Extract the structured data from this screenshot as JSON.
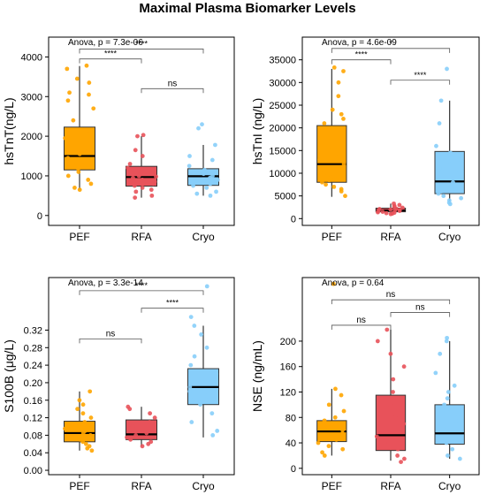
{
  "figure": {
    "title": "Maximal Plasma Biomarker Levels"
  },
  "colors": {
    "PEF": "#FFA500",
    "RFA": "#E8525A",
    "Cryo": "#87CEFA",
    "median": "#000000",
    "box_stroke": "#333333"
  },
  "chart_data": [
    {
      "type": "box",
      "ylabel": "hsTnT(ng/L)",
      "categories": [
        "PEF",
        "RFA",
        "Cryo"
      ],
      "ylim": [
        -250,
        4500
      ],
      "yticks": [
        0,
        1000,
        2000,
        3000,
        4000
      ],
      "ytick_labels": [
        "0",
        "1000",
        "2000",
        "3000",
        "4000"
      ],
      "stats_text": "Anova, p = 7.3e-06",
      "boxes": [
        {
          "group": "PEF",
          "whisker_low": 650,
          "q1": 1150,
          "median": 1500,
          "q3": 2230,
          "whisker_high": 3770
        },
        {
          "group": "RFA",
          "whisker_low": 450,
          "q1": 740,
          "median": 970,
          "q3": 1240,
          "whisker_high": 2000
        },
        {
          "group": "Cryo",
          "whisker_low": 500,
          "q1": 760,
          "median": 990,
          "q3": 1180,
          "whisker_high": 1780
        }
      ],
      "points": [
        {
          "group": "PEF",
          "y": [
            3780,
            3700,
            3450,
            3350,
            3100,
            3050,
            2900,
            2700,
            2400,
            2150,
            1950,
            1800,
            1650,
            1550,
            1450,
            1350,
            1250,
            1180,
            1100,
            1000,
            900,
            800,
            700,
            650
          ]
        },
        {
          "group": "RFA",
          "y": [
            2030,
            2000,
            1650,
            1500,
            1300,
            1200,
            1100,
            1050,
            1000,
            980,
            950,
            900,
            850,
            800,
            750,
            700,
            650,
            600,
            500,
            450
          ]
        },
        {
          "group": "Cryo",
          "y": [
            2300,
            2200,
            1780,
            1500,
            1400,
            1250,
            1150,
            1100,
            1050,
            1000,
            950,
            900,
            850,
            800,
            750,
            700,
            600,
            550,
            500
          ]
        }
      ],
      "comparisons": [
        {
          "from": "PEF",
          "to": "RFA",
          "y": 3950,
          "label": "****"
        },
        {
          "from": "PEF",
          "to": "Cryo",
          "y": 4200,
          "label": "****"
        },
        {
          "from": "RFA",
          "to": "Cryo",
          "y": 3200,
          "label": "ns"
        }
      ]
    },
    {
      "type": "box",
      "ylabel": "hsTnI (ng/L)",
      "categories": [
        "PEF",
        "RFA",
        "Cryo"
      ],
      "ylim": [
        -1500,
        40000
      ],
      "yticks": [
        0,
        5000,
        10000,
        15000,
        20000,
        25000,
        30000,
        35000
      ],
      "ytick_labels": [
        "0",
        "5000",
        "10000",
        "15000",
        "20000",
        "25000",
        "30000",
        "35000"
      ],
      "stats_text": "Anova, p = 4.6e-09",
      "boxes": [
        {
          "group": "PEF",
          "whisker_low": 4800,
          "q1": 8000,
          "median": 12000,
          "q3": 20500,
          "whisker_high": 33000
        },
        {
          "group": "RFA",
          "whisker_low": 1000,
          "q1": 1500,
          "median": 1800,
          "q3": 2300,
          "whisker_high": 3300
        },
        {
          "group": "Cryo",
          "whisker_low": 3200,
          "q1": 5500,
          "median": 8200,
          "q3": 14800,
          "whisker_high": 26000
        }
      ],
      "points": [
        {
          "group": "PEF",
          "y": [
            33300,
            32500,
            30000,
            27000,
            24000,
            23000,
            22000,
            21000,
            19000,
            17000,
            15500,
            14000,
            13000,
            12000,
            11000,
            10000,
            9000,
            8500,
            8000,
            7500,
            7000,
            6500,
            6000,
            5000
          ]
        },
        {
          "group": "RFA",
          "y": [
            3300,
            3000,
            2800,
            2600,
            2400,
            2200,
            2100,
            2000,
            1900,
            1800,
            1700,
            1600,
            1500,
            1400,
            1300,
            1200,
            1100,
            1000
          ]
        },
        {
          "group": "Cryo",
          "y": [
            33000,
            26000,
            21000,
            16000,
            14500,
            13000,
            12000,
            11000,
            10000,
            9000,
            8000,
            7000,
            6000,
            5500,
            5000,
            4500,
            4000,
            3500,
            3200
          ]
        }
      ],
      "comparisons": [
        {
          "from": "PEF",
          "to": "RFA",
          "y": 35000,
          "label": "****"
        },
        {
          "from": "PEF",
          "to": "Cryo",
          "y": 37500,
          "label": "*"
        },
        {
          "from": "RFA",
          "to": "Cryo",
          "y": 30500,
          "label": "****"
        }
      ]
    },
    {
      "type": "box",
      "ylabel": "S100B (μg/L)",
      "categories": [
        "PEF",
        "RFA",
        "Cryo"
      ],
      "ylim": [
        -0.01,
        0.44
      ],
      "yticks": [
        0.0,
        0.04,
        0.08,
        0.12,
        0.16,
        0.2,
        0.24,
        0.28,
        0.32
      ],
      "ytick_labels": [
        "0.00",
        "0.04",
        "0.08",
        "0.12",
        "0.16",
        "0.20",
        "0.24",
        "0.28",
        "0.32"
      ],
      "stats_text": "Anova, p = 3.3e-14",
      "boxes": [
        {
          "group": "PEF",
          "whisker_low": 0.045,
          "q1": 0.065,
          "median": 0.085,
          "q3": 0.112,
          "whisker_high": 0.18
        },
        {
          "group": "RFA",
          "whisker_low": 0.055,
          "q1": 0.07,
          "median": 0.082,
          "q3": 0.115,
          "whisker_high": 0.145
        },
        {
          "group": "Cryo",
          "whisker_low": 0.075,
          "q1": 0.15,
          "median": 0.19,
          "q3": 0.232,
          "whisker_high": 0.33
        }
      ],
      "points": [
        {
          "group": "PEF",
          "y": [
            0.18,
            0.16,
            0.15,
            0.14,
            0.13,
            0.12,
            0.11,
            0.1,
            0.095,
            0.09,
            0.085,
            0.08,
            0.075,
            0.07,
            0.065,
            0.06,
            0.055,
            0.05,
            0.045
          ]
        },
        {
          "group": "RFA",
          "y": [
            0.145,
            0.14,
            0.13,
            0.12,
            0.11,
            0.1,
            0.095,
            0.09,
            0.085,
            0.08,
            0.075,
            0.07,
            0.065,
            0.06,
            0.055
          ]
        },
        {
          "group": "Cryo",
          "y": [
            0.42,
            0.35,
            0.33,
            0.31,
            0.28,
            0.26,
            0.24,
            0.22,
            0.21,
            0.2,
            0.19,
            0.18,
            0.17,
            0.16,
            0.15,
            0.13,
            0.11,
            0.09,
            0.08
          ]
        }
      ],
      "comparisons": [
        {
          "from": "PEF",
          "to": "RFA",
          "y": 0.3,
          "label": "ns"
        },
        {
          "from": "PEF",
          "to": "Cryo",
          "y": 0.41,
          "label": "****"
        },
        {
          "from": "RFA",
          "to": "Cryo",
          "y": 0.37,
          "label": "****"
        }
      ]
    },
    {
      "type": "box",
      "ylabel": "NSE (ng/mL)",
      "categories": [
        "PEF",
        "RFA",
        "Cryo"
      ],
      "ylim": [
        -10,
        300
      ],
      "yticks": [
        0,
        40,
        80,
        120,
        160,
        200
      ],
      "ytick_labels": [
        "0",
        "40",
        "80",
        "120",
        "160",
        "200"
      ],
      "stats_text": "Anova, p = 0.64",
      "boxes": [
        {
          "group": "PEF",
          "whisker_low": 20,
          "q1": 42,
          "median": 58,
          "q3": 75,
          "whisker_high": 125
        },
        {
          "group": "RFA",
          "whisker_low": 12,
          "q1": 28,
          "median": 52,
          "q3": 115,
          "whisker_high": 218
        },
        {
          "group": "Cryo",
          "whisker_low": 15,
          "q1": 38,
          "median": 55,
          "q3": 100,
          "whisker_high": 200
        }
      ],
      "points": [
        {
          "group": "PEF",
          "y": [
            290,
            125,
            115,
            100,
            90,
            80,
            75,
            70,
            65,
            60,
            55,
            50,
            45,
            40,
            35,
            30,
            25,
            20
          ]
        },
        {
          "group": "RFA",
          "y": [
            218,
            200,
            180,
            160,
            140,
            120,
            110,
            100,
            90,
            80,
            70,
            60,
            50,
            40,
            30,
            20,
            15,
            10
          ]
        },
        {
          "group": "Cryo",
          "y": [
            205,
            200,
            180,
            150,
            130,
            120,
            110,
            100,
            90,
            80,
            70,
            60,
            50,
            40,
            30,
            20,
            15
          ]
        }
      ],
      "comparisons": [
        {
          "from": "PEF",
          "to": "RFA",
          "y": 225,
          "label": "ns"
        },
        {
          "from": "PEF",
          "to": "Cryo",
          "y": 265,
          "label": "ns"
        },
        {
          "from": "RFA",
          "to": "Cryo",
          "y": 245,
          "label": "ns"
        }
      ]
    }
  ]
}
